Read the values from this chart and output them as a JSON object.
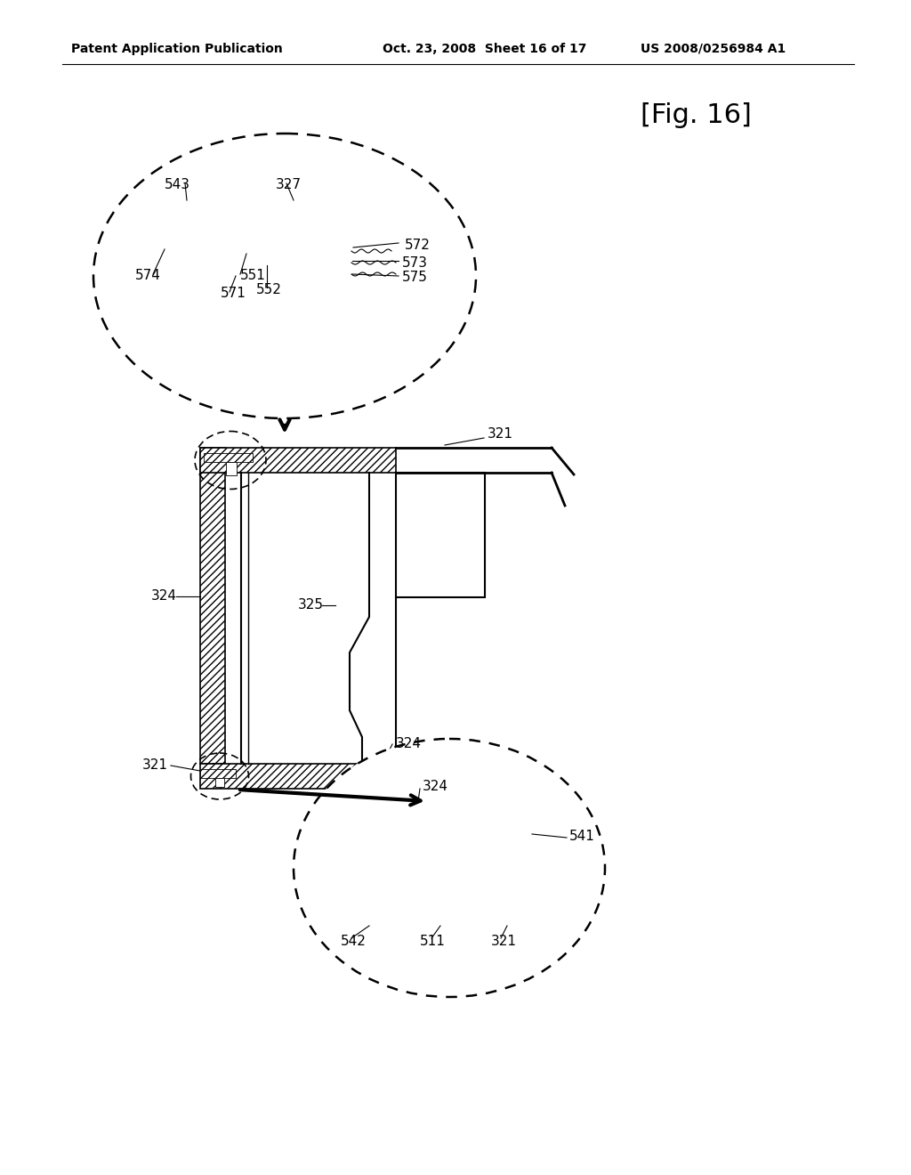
{
  "bg_color": "#ffffff",
  "header_left": "Patent Application Publication",
  "header_mid": "Oct. 23, 2008  Sheet 16 of 17",
  "header_right": "US 2008/0256984 A1",
  "fig_label": "[Fig. 16]"
}
